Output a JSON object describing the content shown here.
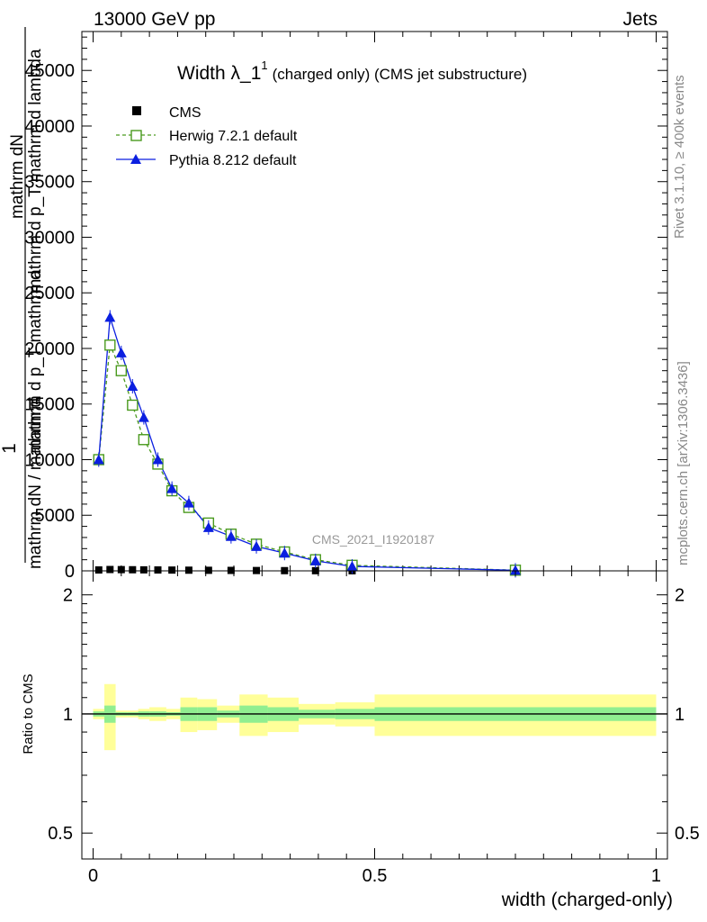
{
  "header": {
    "left": "13000 GeV pp",
    "right": "Jets"
  },
  "side": {
    "rivet": "Rivet 3.1.10, ≥ 400k events",
    "mcplots": "mcplots.cern.ch [arXiv:1306.3436]"
  },
  "watermark": "CMS_2021_I1920187",
  "colors": {
    "herwig": "#4a9a1e",
    "pythia": "#0b1fe0",
    "band_inner": "#90ee90",
    "band_outer": "#ffff99"
  },
  "chart_data": [
    {
      "type": "line",
      "title": "Width λ_1¹ (charged only) (CMS jet substructure)",
      "title_main": "Width λ_1",
      "title_sup": "1",
      "title_rest": "(charged only) (CMS jet substructure)",
      "ylabel_num": "mathrm dN",
      "ylabel_den_lines": [
        "mathrm d p_T mathrm d lambda",
        "mathrm d p_T mathrm d",
        "mathrm dN / mathrm d"
      ],
      "ylabel_prefix": "1",
      "xlim": [
        -0.02,
        1.02
      ],
      "ylim": [
        0,
        48500
      ],
      "yticks": [
        0,
        5000,
        10000,
        15000,
        20000,
        25000,
        30000,
        35000,
        40000,
        45000
      ],
      "ytick_labels": [
        "0",
        "5000",
        "10000",
        "15000",
        "20000",
        "25000",
        "30000",
        "35000",
        "40000",
        "45000"
      ],
      "legend_position": "top-left",
      "series": [
        {
          "name": "CMS",
          "marker": "square",
          "x": [
            0.01,
            0.03,
            0.05,
            0.07,
            0.09,
            0.115,
            0.14,
            0.17,
            0.205,
            0.245,
            0.29,
            0.34,
            0.395,
            0.46,
            0.75
          ],
          "y": [
            80,
            120,
            110,
            100,
            90,
            80,
            70,
            60,
            50,
            40,
            30,
            20,
            15,
            10,
            1
          ]
        },
        {
          "name": "Herwig 7.2.1 default",
          "marker": "open-square",
          "x": [
            0.01,
            0.03,
            0.05,
            0.07,
            0.09,
            0.115,
            0.14,
            0.17,
            0.205,
            0.245,
            0.29,
            0.34,
            0.395,
            0.46,
            0.75
          ],
          "y": [
            10000,
            20300,
            18000,
            14900,
            11800,
            9600,
            7200,
            5700,
            4300,
            3300,
            2400,
            1700,
            1000,
            500,
            60
          ]
        },
        {
          "name": "Pythia 8.212 default",
          "marker": "filled-triangle",
          "x": [
            0.01,
            0.03,
            0.05,
            0.07,
            0.09,
            0.115,
            0.14,
            0.17,
            0.205,
            0.245,
            0.29,
            0.34,
            0.395,
            0.46,
            0.75
          ],
          "y": [
            10000,
            22800,
            19600,
            16600,
            13800,
            10000,
            7400,
            6100,
            3900,
            3100,
            2200,
            1600,
            900,
            400,
            50
          ]
        }
      ]
    },
    {
      "type": "area",
      "ylabel": "Ratio to CMS",
      "xlabel": "width (charged-only)",
      "xlim": [
        -0.02,
        1.02
      ],
      "xticks": [
        0,
        0.5,
        1
      ],
      "xtick_labels": [
        "0",
        "0.5",
        "1"
      ],
      "ylim": [
        0.43,
        2.3
      ],
      "yticks": [
        0.5,
        1,
        2
      ],
      "ytick_labels": [
        "0.5",
        "1",
        "2"
      ],
      "bins": [
        {
          "lo": 0.0,
          "hi": 0.02,
          "inner": 0.015,
          "outer": 0.03
        },
        {
          "lo": 0.02,
          "hi": 0.04,
          "inner": 0.05,
          "outer": 0.19
        },
        {
          "lo": 0.04,
          "hi": 0.06,
          "inner": 0.01,
          "outer": 0.02
        },
        {
          "lo": 0.06,
          "hi": 0.08,
          "inner": 0.01,
          "outer": 0.02
        },
        {
          "lo": 0.08,
          "hi": 0.1,
          "inner": 0.015,
          "outer": 0.03
        },
        {
          "lo": 0.1,
          "hi": 0.13,
          "inner": 0.015,
          "outer": 0.04
        },
        {
          "lo": 0.13,
          "hi": 0.155,
          "inner": 0.01,
          "outer": 0.03
        },
        {
          "lo": 0.155,
          "hi": 0.185,
          "inner": 0.04,
          "outer": 0.1
        },
        {
          "lo": 0.185,
          "hi": 0.22,
          "inner": 0.04,
          "outer": 0.09
        },
        {
          "lo": 0.22,
          "hi": 0.26,
          "inner": 0.02,
          "outer": 0.05
        },
        {
          "lo": 0.26,
          "hi": 0.31,
          "inner": 0.05,
          "outer": 0.12
        },
        {
          "lo": 0.31,
          "hi": 0.365,
          "inner": 0.04,
          "outer": 0.1
        },
        {
          "lo": 0.365,
          "hi": 0.43,
          "inner": 0.025,
          "outer": 0.06
        },
        {
          "lo": 0.43,
          "hi": 0.5,
          "inner": 0.03,
          "outer": 0.07
        },
        {
          "lo": 0.5,
          "hi": 1.0,
          "inner": 0.04,
          "outer": 0.12
        }
      ]
    }
  ]
}
